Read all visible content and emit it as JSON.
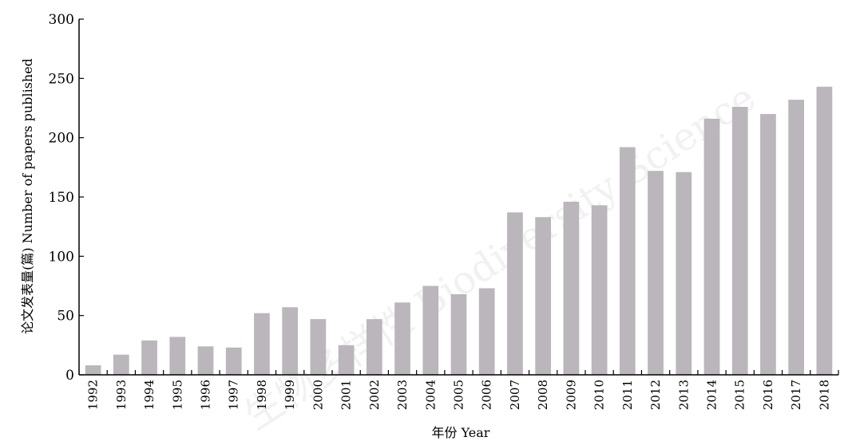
{
  "watermark": "生物多样性 Biodiversity Science",
  "chart_data": {
    "type": "bar",
    "title": "",
    "xlabel": "年份 Year",
    "ylabel": "论文发表量(篇) Number of papers published",
    "ylim": [
      0,
      300
    ],
    "yticks": [
      0,
      50,
      100,
      150,
      200,
      250,
      300
    ],
    "grid": false,
    "bar_color": "#bab6bb",
    "categories": [
      "1992",
      "1993",
      "1994",
      "1995",
      "1996",
      "1997",
      "1998",
      "1999",
      "2000",
      "2001",
      "2002",
      "2003",
      "2004",
      "2005",
      "2006",
      "2007",
      "2008",
      "2009",
      "2010",
      "2011",
      "2012",
      "2013",
      "2014",
      "2015",
      "2016",
      "2017",
      "2018"
    ],
    "values": [
      8,
      17,
      29,
      32,
      24,
      23,
      52,
      57,
      47,
      25,
      47,
      61,
      75,
      68,
      73,
      137,
      133,
      146,
      143,
      192,
      172,
      171,
      216,
      226,
      220,
      232,
      243
    ]
  }
}
